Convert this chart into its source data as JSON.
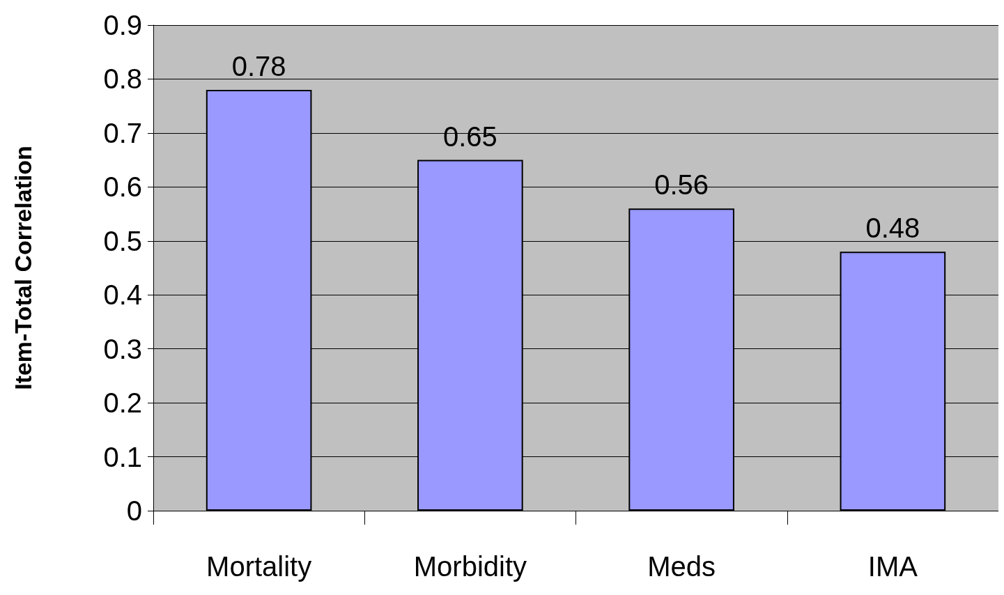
{
  "chart_data": {
    "type": "bar",
    "ylabel": "Item-Total Correlation",
    "categories": [
      "Mortality",
      "Morbidity",
      "Meds",
      "IMA"
    ],
    "values": [
      0.78,
      0.65,
      0.56,
      0.48
    ],
    "color": "#9999ff",
    "ylim": [
      0,
      0.9
    ],
    "yticks": [
      0,
      0.1,
      0.2,
      0.3,
      0.4,
      0.5,
      0.6,
      0.7,
      0.8,
      0.9
    ],
    "grid": "y",
    "data_labels": true
  }
}
